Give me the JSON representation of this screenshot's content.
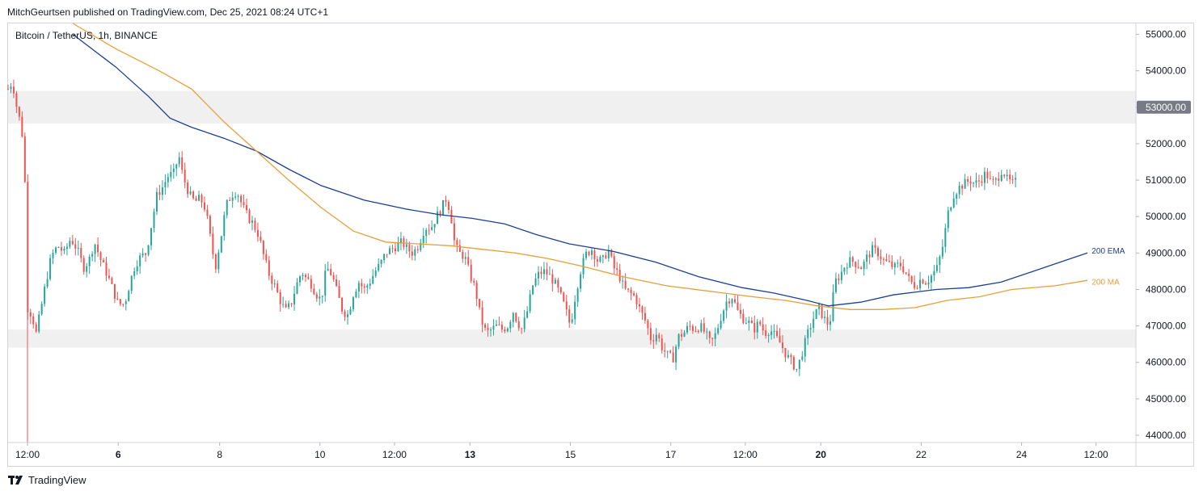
{
  "header": {
    "published_text": "MitchGeurtsen published on TradingView.com, Dec 25, 2021 08:24 UTC+1"
  },
  "symbol_label": "Bitcoin / TetherUS, 1h, BINANCE",
  "footer": {
    "brand": "TradingView",
    "logo_icon": "tradingview-logo-icon"
  },
  "colors": {
    "up": "#26a69a",
    "down": "#ef5350",
    "ema": "#1c3f95",
    "ma": "#e5a03b",
    "zone": "#f0f0f0",
    "axis_text": "#131722",
    "price_badge": "#787b86"
  },
  "chart_data": {
    "type": "candlestick",
    "title": "Bitcoin / TetherUS, 1h, BINANCE",
    "ylim": [
      43800,
      55300
    ],
    "xlim": [
      0,
      1000
    ],
    "y_ticks": [
      "55000.00",
      "54000.00",
      "53000.00",
      "52000.00",
      "51000.00",
      "50000.00",
      "49000.00",
      "48000.00",
      "47000.00",
      "46000.00",
      "45000.00",
      "44000.00"
    ],
    "y_tick_values": [
      55000,
      54000,
      53000,
      52000,
      51000,
      50000,
      49000,
      48000,
      47000,
      46000,
      45000,
      44000
    ],
    "highlighted_price": "53000.00",
    "highlighted_price_value": 53000,
    "x_ticks": [
      {
        "label": "12:00",
        "t": 18,
        "bold": false
      },
      {
        "label": "6",
        "t": 102,
        "bold": true
      },
      {
        "label": "8",
        "t": 196,
        "bold": false
      },
      {
        "label": "10",
        "t": 289,
        "bold": false
      },
      {
        "label": "12:00",
        "t": 358,
        "bold": false
      },
      {
        "label": "13",
        "t": 428,
        "bold": true
      },
      {
        "label": "15",
        "t": 521,
        "bold": false
      },
      {
        "label": "17",
        "t": 614,
        "bold": false
      },
      {
        "label": "12:00",
        "t": 683,
        "bold": false
      },
      {
        "label": "20",
        "t": 753,
        "bold": true
      },
      {
        "label": "22",
        "t": 846,
        "bold": false
      },
      {
        "label": "24",
        "t": 939,
        "bold": false
      },
      {
        "label": "12:00",
        "t": 1008,
        "bold": false
      }
    ],
    "zones": [
      {
        "name": "resistance-zone",
        "from": 52550,
        "to": 53450
      },
      {
        "name": "support-zone",
        "from": 46400,
        "to": 46900
      }
    ],
    "series": [
      {
        "name": "200 EMA",
        "color": "#1c3f95",
        "points": [
          [
            60,
            55000
          ],
          [
            100,
            54100
          ],
          [
            130,
            53300
          ],
          [
            150,
            52700
          ],
          [
            170,
            52450
          ],
          [
            200,
            52150
          ],
          [
            230,
            51800
          ],
          [
            260,
            51300
          ],
          [
            290,
            50850
          ],
          [
            330,
            50450
          ],
          [
            370,
            50200
          ],
          [
            400,
            50050
          ],
          [
            430,
            49950
          ],
          [
            460,
            49800
          ],
          [
            490,
            49500
          ],
          [
            520,
            49250
          ],
          [
            560,
            49050
          ],
          [
            600,
            48750
          ],
          [
            640,
            48350
          ],
          [
            680,
            48050
          ],
          [
            710,
            47900
          ],
          [
            740,
            47700
          ],
          [
            760,
            47550
          ],
          [
            790,
            47650
          ],
          [
            820,
            47850
          ],
          [
            860,
            48000
          ],
          [
            890,
            48050
          ],
          [
            920,
            48200
          ],
          [
            950,
            48500
          ],
          [
            980,
            48800
          ],
          [
            1000,
            49000
          ]
        ]
      },
      {
        "name": "200 MA",
        "color": "#e5a03b",
        "points": [
          [
            60,
            55300
          ],
          [
            100,
            54600
          ],
          [
            140,
            54000
          ],
          [
            170,
            53500
          ],
          [
            200,
            52600
          ],
          [
            230,
            51800
          ],
          [
            260,
            51000
          ],
          [
            290,
            50250
          ],
          [
            320,
            49600
          ],
          [
            350,
            49300
          ],
          [
            380,
            49250
          ],
          [
            410,
            49200
          ],
          [
            440,
            49100
          ],
          [
            470,
            49000
          ],
          [
            500,
            48850
          ],
          [
            530,
            48650
          ],
          [
            570,
            48350
          ],
          [
            610,
            48100
          ],
          [
            650,
            47950
          ],
          [
            690,
            47800
          ],
          [
            720,
            47700
          ],
          [
            750,
            47550
          ],
          [
            780,
            47450
          ],
          [
            810,
            47450
          ],
          [
            840,
            47500
          ],
          [
            870,
            47700
          ],
          [
            900,
            47800
          ],
          [
            930,
            48000
          ],
          [
            970,
            48100
          ],
          [
            1000,
            48250
          ]
        ]
      }
    ],
    "series_labels": [
      {
        "text": "200 EMA",
        "series": "200 EMA",
        "t": 1004,
        "value": 49050
      },
      {
        "text": "200 MA",
        "series": "200 MA",
        "t": 1004,
        "value": 48200
      }
    ],
    "price_path": [
      [
        0,
        53500
      ],
      [
        4,
        53700
      ],
      [
        8,
        53000
      ],
      [
        12,
        52500
      ],
      [
        15,
        51800
      ],
      [
        18,
        47500
      ],
      [
        22,
        47300
      ],
      [
        26,
        46800
      ],
      [
        30,
        47400
      ],
      [
        35,
        48200
      ],
      [
        40,
        48900
      ],
      [
        46,
        49200
      ],
      [
        52,
        49000
      ],
      [
        58,
        49400
      ],
      [
        64,
        49100
      ],
      [
        70,
        48600
      ],
      [
        75,
        48800
      ],
      [
        80,
        49300
      ],
      [
        86,
        48800
      ],
      [
        92,
        48400
      ],
      [
        97,
        48000
      ],
      [
        102,
        47600
      ],
      [
        108,
        47600
      ],
      [
        113,
        48200
      ],
      [
        118,
        48700
      ],
      [
        123,
        48900
      ],
      [
        128,
        49000
      ],
      [
        133,
        49800
      ],
      [
        138,
        50600
      ],
      [
        143,
        50800
      ],
      [
        148,
        51100
      ],
      [
        154,
        51200
      ],
      [
        158,
        51700
      ],
      [
        162,
        51100
      ],
      [
        168,
        50600
      ],
      [
        173,
        50400
      ],
      [
        178,
        50500
      ],
      [
        183,
        50200
      ],
      [
        188,
        49300
      ],
      [
        192,
        48600
      ],
      [
        197,
        49400
      ],
      [
        202,
        50300
      ],
      [
        207,
        50600
      ],
      [
        212,
        50700
      ],
      [
        217,
        50300
      ],
      [
        222,
        50000
      ],
      [
        227,
        49800
      ],
      [
        232,
        49500
      ],
      [
        237,
        48900
      ],
      [
        242,
        48400
      ],
      [
        247,
        48100
      ],
      [
        252,
        47700
      ],
      [
        257,
        47400
      ],
      [
        262,
        47600
      ],
      [
        267,
        48100
      ],
      [
        272,
        48500
      ],
      [
        276,
        48300
      ],
      [
        280,
        48200
      ],
      [
        285,
        47900
      ],
      [
        290,
        47700
      ],
      [
        295,
        48600
      ],
      [
        300,
        48400
      ],
      [
        305,
        47900
      ],
      [
        310,
        47400
      ],
      [
        315,
        47300
      ],
      [
        320,
        47900
      ],
      [
        325,
        48200
      ],
      [
        330,
        48000
      ],
      [
        335,
        48200
      ],
      [
        340,
        48500
      ],
      [
        345,
        48700
      ],
      [
        350,
        49000
      ],
      [
        355,
        49100
      ],
      [
        360,
        49200
      ],
      [
        365,
        49300
      ],
      [
        370,
        49100
      ],
      [
        375,
        49000
      ],
      [
        380,
        49200
      ],
      [
        386,
        49700
      ],
      [
        392,
        49700
      ],
      [
        397,
        50000
      ],
      [
        401,
        50200
      ],
      [
        406,
        50500
      ],
      [
        410,
        50100
      ],
      [
        414,
        49200
      ],
      [
        418,
        49000
      ],
      [
        423,
        48900
      ],
      [
        428,
        48400
      ],
      [
        433,
        48000
      ],
      [
        438,
        47200
      ],
      [
        443,
        46800
      ],
      [
        448,
        46900
      ],
      [
        453,
        47000
      ],
      [
        458,
        46900
      ],
      [
        463,
        47000
      ],
      [
        468,
        47400
      ],
      [
        472,
        47100
      ],
      [
        476,
        46900
      ],
      [
        481,
        47400
      ],
      [
        486,
        48100
      ],
      [
        491,
        48400
      ],
      [
        496,
        48500
      ],
      [
        501,
        48400
      ],
      [
        506,
        48200
      ],
      [
        511,
        47900
      ],
      [
        516,
        47500
      ],
      [
        521,
        47000
      ],
      [
        526,
        47900
      ],
      [
        531,
        48600
      ],
      [
        536,
        49000
      ],
      [
        541,
        49100
      ],
      [
        546,
        48800
      ],
      [
        551,
        48800
      ],
      [
        556,
        49100
      ],
      [
        561,
        48600
      ],
      [
        566,
        48400
      ],
      [
        571,
        48000
      ],
      [
        576,
        47900
      ],
      [
        581,
        47800
      ],
      [
        586,
        47400
      ],
      [
        591,
        47100
      ],
      [
        596,
        46600
      ],
      [
        601,
        46800
      ],
      [
        606,
        46400
      ],
      [
        611,
        46200
      ],
      [
        616,
        46100
      ],
      [
        621,
        46700
      ],
      [
        626,
        46800
      ],
      [
        631,
        47000
      ],
      [
        636,
        46900
      ],
      [
        641,
        47000
      ],
      [
        646,
        46800
      ],
      [
        651,
        46500
      ],
      [
        656,
        46800
      ],
      [
        661,
        47300
      ],
      [
        666,
        47700
      ],
      [
        671,
        47800
      ],
      [
        676,
        47400
      ],
      [
        681,
        47200
      ],
      [
        686,
        47100
      ],
      [
        691,
        46900
      ],
      [
        696,
        47100
      ],
      [
        701,
        46800
      ],
      [
        706,
        46900
      ],
      [
        711,
        46700
      ],
      [
        716,
        46500
      ],
      [
        721,
        46200
      ],
      [
        726,
        46000
      ],
      [
        731,
        45800
      ],
      [
        736,
        46300
      ],
      [
        741,
        46800
      ],
      [
        746,
        47200
      ],
      [
        751,
        47500
      ],
      [
        756,
        47200
      ],
      [
        761,
        47000
      ],
      [
        766,
        48200
      ],
      [
        771,
        48400
      ],
      [
        776,
        48700
      ],
      [
        781,
        48800
      ],
      [
        786,
        48700
      ],
      [
        791,
        48600
      ],
      [
        796,
        48900
      ],
      [
        801,
        49100
      ],
      [
        806,
        49000
      ],
      [
        811,
        48800
      ],
      [
        816,
        48700
      ],
      [
        821,
        48600
      ],
      [
        826,
        48700
      ],
      [
        831,
        48500
      ],
      [
        836,
        48200
      ],
      [
        841,
        48100
      ],
      [
        846,
        48300
      ],
      [
        851,
        48200
      ],
      [
        856,
        48400
      ],
      [
        861,
        48600
      ],
      [
        866,
        49200
      ],
      [
        871,
        50100
      ],
      [
        876,
        50600
      ],
      [
        881,
        50800
      ],
      [
        886,
        50900
      ],
      [
        891,
        51000
      ],
      [
        896,
        50900
      ],
      [
        901,
        51000
      ],
      [
        906,
        51200
      ],
      [
        911,
        50900
      ],
      [
        916,
        51000
      ],
      [
        921,
        51300
      ],
      [
        926,
        51000
      ],
      [
        931,
        50900
      ],
      [
        936,
        51000
      ]
    ]
  }
}
